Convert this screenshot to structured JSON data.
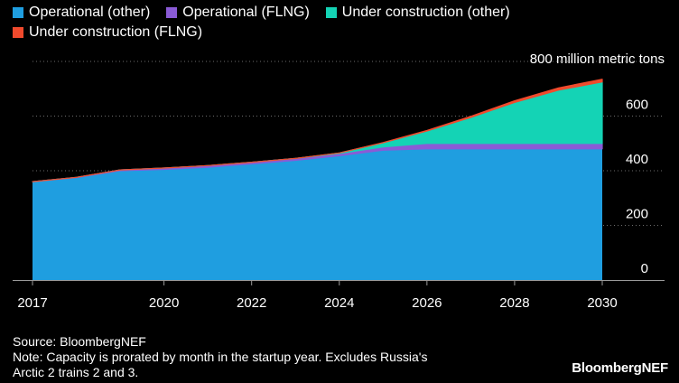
{
  "chart_data": {
    "type": "area",
    "stacked": true,
    "title": "",
    "xlabel": "",
    "ylabel": "",
    "unit_label": "800 million metric tons",
    "x_ticks": [
      "2017",
      "2020",
      "2022",
      "2024",
      "2026",
      "2028",
      "2030"
    ],
    "x_tick_values": [
      2017,
      2020,
      2022,
      2024,
      2026,
      2028,
      2030
    ],
    "y_ticks": [
      "0",
      "200",
      "400",
      "600"
    ],
    "y_tick_values": [
      0,
      200,
      400,
      600
    ],
    "xlim": [
      2017,
      2030
    ],
    "ylim": [
      0,
      800
    ],
    "legend_position": "top-left",
    "x": [
      2017,
      2018,
      2019,
      2020,
      2021,
      2022,
      2023,
      2024,
      2025,
      2026,
      2027,
      2028,
      2029,
      2030
    ],
    "series": [
      {
        "name": "Operational (other)",
        "color": "#1f9ee0",
        "values": [
          360,
          375,
          400,
          405,
          413,
          425,
          438,
          455,
          475,
          480,
          480,
          480,
          480,
          480
        ]
      },
      {
        "name": "Operational (FLNG)",
        "color": "#8a5bd6",
        "values": [
          0,
          1,
          3,
          5,
          6,
          6,
          7,
          8,
          12,
          20,
          20,
          20,
          20,
          20
        ]
      },
      {
        "name": "Under construction (other)",
        "color": "#14d3b5",
        "values": [
          0,
          0,
          0,
          0,
          0,
          0,
          0,
          2,
          15,
          45,
          95,
          150,
          195,
          225
        ]
      },
      {
        "name": "Under construction (FLNG)",
        "color": "#f04a2d",
        "values": [
          0,
          0,
          0,
          0,
          0,
          0,
          0,
          0,
          1,
          2,
          4,
          6,
          8,
          10
        ]
      }
    ]
  },
  "notes": {
    "source": "Source: BloombergNEF",
    "note_line1": "Note: Capacity is prorated by month in the startup year. Excludes Russia's",
    "note_line2": "Arctic 2 trains 2 and 3."
  },
  "brand": "BloombergNEF"
}
